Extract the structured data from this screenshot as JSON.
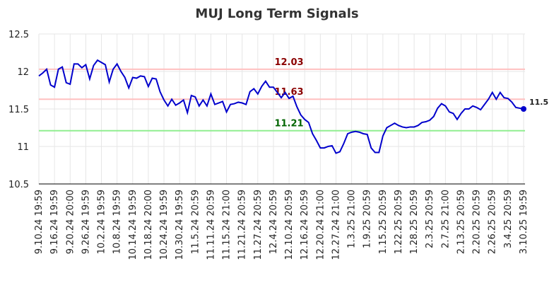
{
  "chart_data": {
    "type": "line",
    "title": "MUJ Long Term Signals",
    "categories": [
      "9.10.24 19:59",
      null,
      null,
      null,
      "9.16.24 19:59",
      null,
      null,
      null,
      "9.20.24 20:00",
      null,
      null,
      null,
      "9.26.24 19:59",
      null,
      null,
      null,
      "10.2.24 19:59",
      null,
      null,
      null,
      "10.8.24 19:59",
      null,
      null,
      null,
      "10.14.24 19:59",
      null,
      null,
      null,
      "10.18.24 20:00",
      null,
      null,
      null,
      "10.24.24 19:59",
      null,
      null,
      null,
      "10.30.24 19:59",
      null,
      null,
      null,
      "11.5.24 20:59",
      null,
      null,
      null,
      "11.11.24 20:59",
      null,
      null,
      null,
      "11.15.24 21:00",
      null,
      null,
      null,
      "11.21.24 20:59",
      null,
      null,
      null,
      "11.27.24 20:59",
      null,
      null,
      null,
      "12.4.24 20:59",
      null,
      null,
      null,
      "12.10.24 20:59",
      null,
      null,
      null,
      "12.16.24 20:59",
      null,
      null,
      null,
      "12.20.24 21:00",
      null,
      null,
      null,
      "12.27.24 21:00",
      null,
      null,
      null,
      "1.3.25 21:00",
      null,
      null,
      null,
      "1.9.25 20:59",
      null,
      null,
      null,
      "1.15.25 20:59",
      null,
      null,
      null,
      "1.22.25 20:59",
      null,
      null,
      null,
      "1.28.25 20:59",
      null,
      null,
      null,
      "2.3.25 20:59",
      null,
      null,
      null,
      "2.7.25 21:00",
      null,
      null,
      null,
      "2.13.25 20:59",
      null,
      null,
      null,
      "2.20.25 20:59",
      null,
      null,
      null,
      "2.26.25 20:59",
      null,
      null,
      null,
      "3.4.25 20:59",
      null,
      null,
      null,
      "3.10.25 19:59"
    ],
    "series": [
      {
        "color": "#0000cc",
        "values": [
          11.94,
          11.98,
          12.03,
          11.82,
          11.79,
          12.03,
          12.06,
          11.85,
          11.83,
          12.1,
          12.1,
          12.05,
          12.09,
          11.9,
          12.08,
          12.15,
          12.12,
          12.09,
          11.86,
          12.03,
          12.1,
          12.0,
          11.92,
          11.78,
          11.92,
          11.91,
          11.94,
          11.93,
          11.8,
          11.91,
          11.9,
          11.73,
          11.62,
          11.54,
          11.63,
          11.55,
          11.58,
          11.62,
          11.45,
          11.68,
          11.66,
          11.54,
          11.62,
          11.54,
          11.7,
          11.56,
          11.58,
          11.6,
          11.46,
          11.56,
          11.57,
          11.59,
          11.58,
          11.56,
          11.73,
          11.77,
          11.7,
          11.8,
          11.87,
          11.79,
          11.79,
          11.72,
          11.65,
          11.72,
          11.64,
          11.67,
          11.53,
          11.42,
          11.36,
          11.32,
          11.17,
          11.08,
          10.98,
          10.98,
          11.0,
          11.01,
          10.91,
          10.93,
          11.04,
          11.17,
          11.19,
          11.2,
          11.19,
          11.17,
          11.16,
          10.98,
          10.92,
          10.92,
          11.14,
          11.25,
          11.28,
          11.31,
          11.28,
          11.26,
          11.25,
          11.26,
          11.26,
          11.28,
          11.32,
          11.33,
          11.35,
          11.4,
          11.51,
          11.57,
          11.54,
          11.46,
          11.44,
          11.36,
          11.44,
          11.5,
          11.5,
          11.54,
          11.52,
          11.49,
          11.56,
          11.63,
          11.72,
          11.63,
          11.72,
          11.65,
          11.64,
          11.59,
          11.52,
          11.51,
          11.5
        ]
      }
    ],
    "hlines": [
      {
        "value": 12.03,
        "color": "#ffc0c0",
        "text_color": "#8b0000"
      },
      {
        "value": 11.63,
        "color": "#ffc0c0",
        "text_color": "#8b0000"
      },
      {
        "value": 11.21,
        "color": "#90ee90",
        "text_color": "#006400"
      }
    ],
    "ylim": [
      10.5,
      12.5
    ],
    "yticks": [
      10.5,
      11,
      11.5,
      12,
      12.5
    ],
    "grid": true
  }
}
